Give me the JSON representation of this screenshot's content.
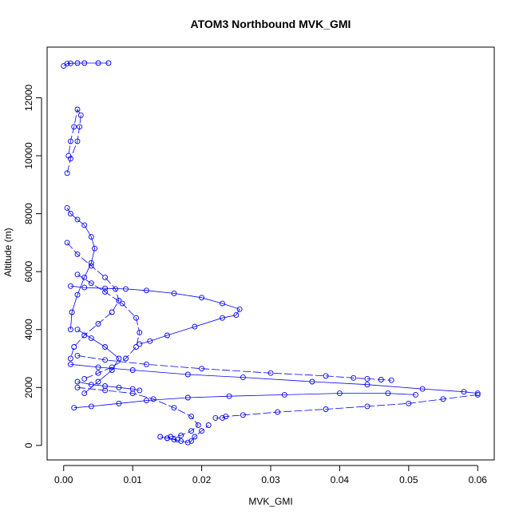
{
  "chart_data": {
    "type": "scatter",
    "title": "ATOM3 Northbound MVK_GMI",
    "xlabel": "MVK_GMI",
    "ylabel": "Altitude (m)",
    "xlim": [
      -0.0024,
      0.0624
    ],
    "ylim": [
      -500,
      13750
    ],
    "x_ticks": [
      0.0,
      0.01,
      0.02,
      0.03,
      0.04,
      0.05,
      0.06
    ],
    "x_tick_labels": [
      "0.00",
      "0.01",
      "0.02",
      "0.03",
      "0.04",
      "0.05",
      "0.06"
    ],
    "y_ticks": [
      0,
      2000,
      4000,
      6000,
      8000,
      10000,
      12000
    ],
    "y_tick_labels": [
      "0",
      "2000",
      "4000",
      "6000",
      "8000",
      "10000",
      "12000"
    ],
    "marker": "open-circle",
    "color": "#0000ff",
    "grid": false,
    "series": [
      {
        "kind": "trajectory",
        "x": [
          0.0,
          0.0005,
          0.001,
          0.002,
          0.003,
          0.005,
          0.0065
        ],
        "y": [
          13100,
          13180,
          13190,
          13200,
          13200,
          13200,
          13200
        ]
      },
      {
        "kind": "trajectory",
        "x": [
          0.0005,
          0.001,
          0.002,
          0.0023,
          0.0025,
          0.002,
          0.0015,
          0.001,
          0.0007
        ],
        "y": [
          9400,
          9900,
          10500,
          11000,
          11400,
          11600,
          11000,
          10500,
          10000
        ]
      },
      {
        "kind": "trajectory",
        "x": [
          0.0005,
          0.001,
          0.002,
          0.003,
          0.004,
          0.0045,
          0.004,
          0.003,
          0.002,
          0.0012,
          0.001
        ],
        "y": [
          8200,
          8000,
          7800,
          7600,
          7200,
          6800,
          6300,
          5800,
          5200,
          4600,
          4000
        ]
      },
      {
        "kind": "trajectory",
        "x": [
          0.0005,
          0.002,
          0.004,
          0.006,
          0.0075,
          0.008,
          0.007,
          0.005,
          0.003,
          0.0015,
          0.001
        ],
        "y": [
          7000,
          6600,
          6200,
          5800,
          5400,
          5000,
          4600,
          4200,
          3800,
          3400,
          3000
        ]
      },
      {
        "kind": "trajectory",
        "x": [
          0.001,
          0.003,
          0.006,
          0.009,
          0.012,
          0.016,
          0.02,
          0.023,
          0.0255,
          0.025,
          0.023,
          0.019,
          0.015,
          0.0125,
          0.011
        ],
        "y": [
          5500,
          5450,
          5420,
          5400,
          5350,
          5250,
          5100,
          4900,
          4700,
          4500,
          4400,
          4100,
          3800,
          3600,
          3500
        ]
      },
      {
        "kind": "trajectory",
        "x": [
          0.002,
          0.004,
          0.006,
          0.0085,
          0.0105,
          0.011,
          0.0105,
          0.009,
          0.007,
          0.005,
          0.003
        ],
        "y": [
          5900,
          5600,
          5300,
          4900,
          4400,
          3900,
          3400,
          3000,
          2700,
          2500,
          2300
        ]
      },
      {
        "kind": "trajectory",
        "x": [
          0.002,
          0.004,
          0.006,
          0.008,
          0.007,
          0.005,
          0.003
        ],
        "y": [
          4000,
          3700,
          3400,
          3000,
          2600,
          2200,
          1800
        ]
      },
      {
        "kind": "trajectory",
        "x": [
          0.002,
          0.006,
          0.012,
          0.02,
          0.03,
          0.038,
          0.042,
          0.044,
          0.046,
          0.0475
        ],
        "y": [
          3100,
          2950,
          2800,
          2650,
          2500,
          2400,
          2330,
          2300,
          2270,
          2250
        ]
      },
      {
        "kind": "trajectory",
        "x": [
          0.001,
          0.005,
          0.01,
          0.018,
          0.026,
          0.036,
          0.044,
          0.052,
          0.058,
          0.06
        ],
        "y": [
          2800,
          2700,
          2600,
          2450,
          2350,
          2200,
          2100,
          1950,
          1850,
          1800
        ]
      },
      {
        "kind": "trajectory",
        "x": [
          0.06,
          0.055,
          0.05,
          0.044,
          0.038,
          0.031,
          0.026,
          0.0235,
          0.023,
          0.022
        ],
        "y": [
          1750,
          1600,
          1450,
          1350,
          1250,
          1150,
          1050,
          1000,
          950,
          950
        ]
      },
      {
        "kind": "trajectory",
        "x": [
          0.0015,
          0.004,
          0.008,
          0.012,
          0.018,
          0.024,
          0.032,
          0.04,
          0.047,
          0.051
        ],
        "y": [
          1300,
          1350,
          1450,
          1550,
          1650,
          1700,
          1750,
          1800,
          1800,
          1750
        ]
      },
      {
        "kind": "trajectory",
        "x": [
          0.002,
          0.006,
          0.01,
          0.013,
          0.016,
          0.0185,
          0.0195,
          0.0185,
          0.017,
          0.0155,
          0.015,
          0.0165
        ],
        "y": [
          2000,
          1900,
          1800,
          1600,
          1300,
          1000,
          700,
          500,
          350,
          300,
          250,
          200
        ]
      },
      {
        "kind": "trajectory",
        "x": [
          0.002,
          0.004,
          0.006,
          0.008,
          0.01,
          0.011
        ],
        "y": [
          2200,
          2100,
          2050,
          2000,
          1950,
          1900
        ]
      },
      {
        "kind": "trajectory",
        "x": [
          0.014,
          0.015,
          0.016,
          0.017,
          0.018,
          0.0185,
          0.019,
          0.02,
          0.021
        ],
        "y": [
          300,
          250,
          200,
          150,
          100,
          150,
          300,
          500,
          700
        ]
      }
    ]
  }
}
